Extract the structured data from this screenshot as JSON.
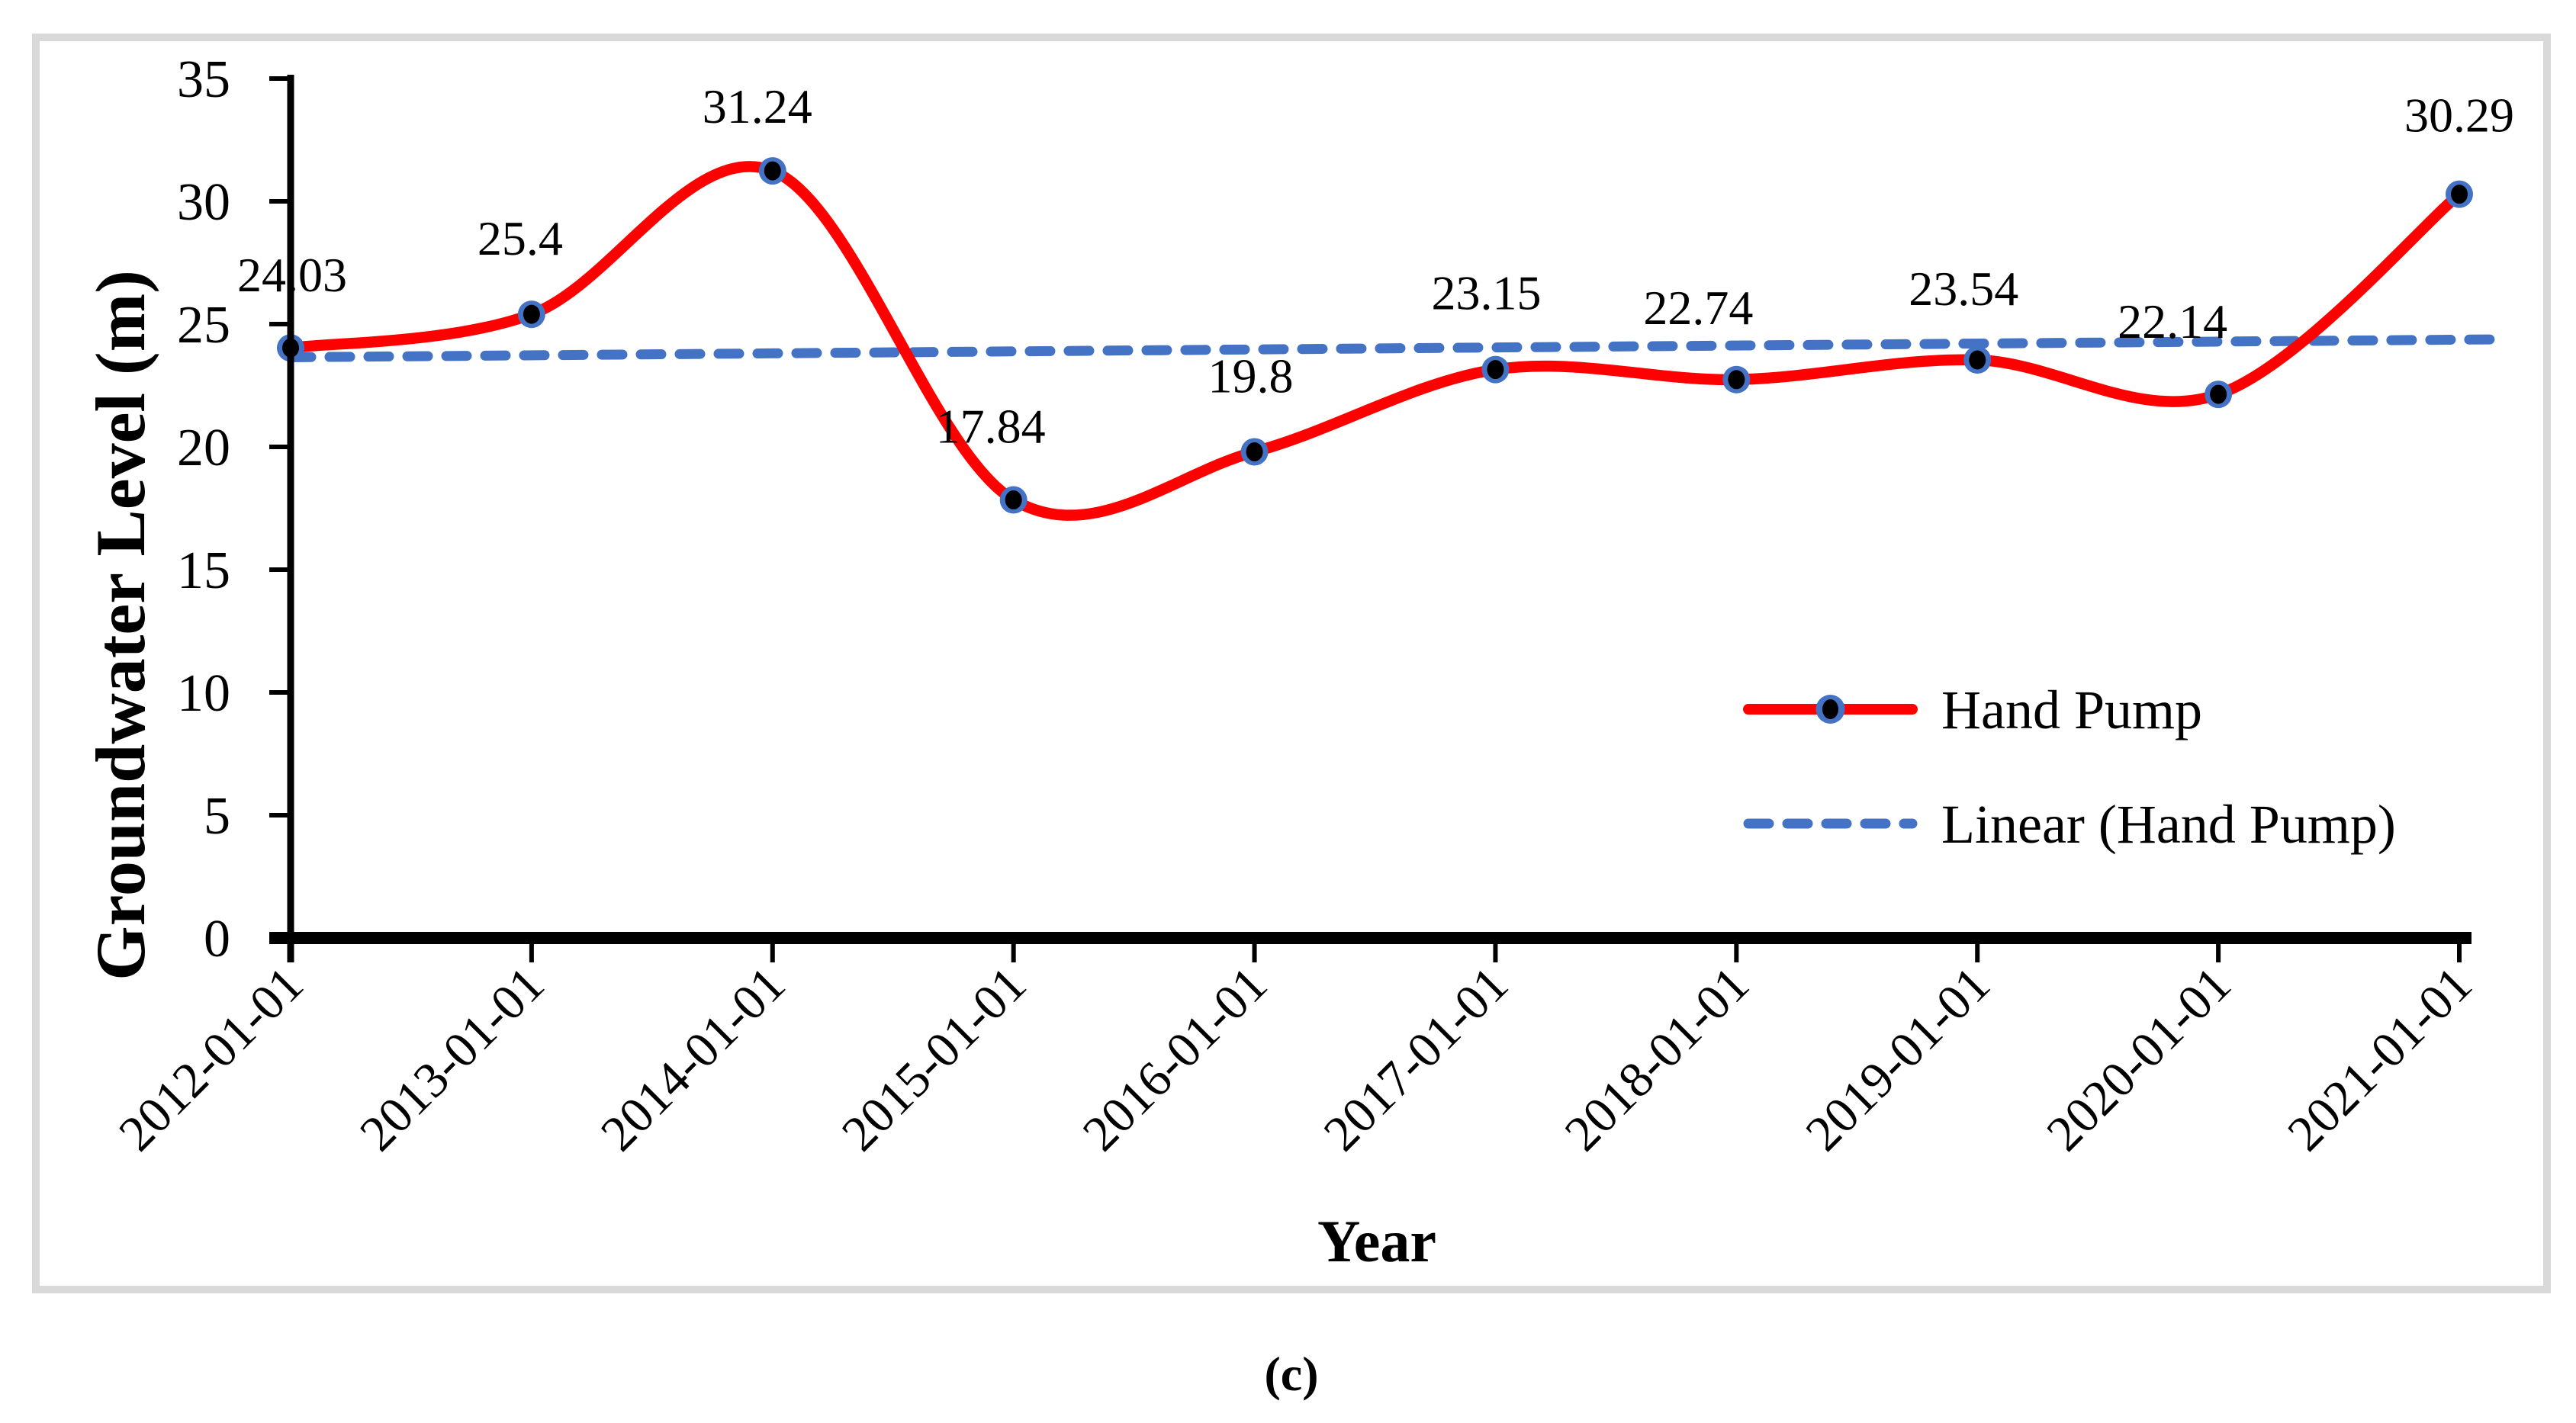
{
  "figure": {
    "caption": "(c)",
    "frame_color": "#d9d9d9",
    "background": "#ffffff"
  },
  "axes": {
    "x": {
      "title": "Year",
      "categories": [
        "2012-01-01",
        "2013-01-01",
        "2014-01-01",
        "2015-01-01",
        "2016-01-01",
        "2017-01-01",
        "2018-01-01",
        "2019-01-01",
        "2020-01-01",
        "2021-01-01"
      ]
    },
    "y": {
      "title": "Groundwater Level (m)",
      "ticks": [
        0,
        5,
        10,
        15,
        20,
        25,
        30,
        35
      ],
      "range": [
        0,
        35
      ]
    }
  },
  "legend": {
    "items": [
      {
        "label": "Hand Pump",
        "symbol": "line-with-marker"
      },
      {
        "label": "Linear (Hand Pump)",
        "symbol": "dashed-line"
      }
    ]
  },
  "chart_data": {
    "type": "line",
    "title": "",
    "xlabel": "Year",
    "ylabel": "Groundwater Level (m)",
    "ylim": [
      0,
      35
    ],
    "grid": false,
    "legend_position": "inside-right",
    "categories": [
      "2012-01-01",
      "2013-01-01",
      "2014-01-01",
      "2015-01-01",
      "2016-01-01",
      "2017-01-01",
      "2018-01-01",
      "2019-01-01",
      "2020-01-01",
      "2021-01-01"
    ],
    "series": [
      {
        "name": "Hand Pump",
        "type": "smooth-line",
        "color": "#ff0000",
        "marker": {
          "fill": "#000000",
          "ring": "#4472c4"
        },
        "values": [
          24.03,
          25.4,
          31.24,
          17.84,
          19.8,
          23.15,
          22.74,
          23.54,
          22.14,
          30.29
        ],
        "data_labels": [
          "24.03",
          "25.4",
          "31.24",
          "17.84",
          "19.8",
          "23.15",
          "22.74",
          "23.54",
          "22.14",
          "30.29"
        ]
      },
      {
        "name": "Linear (Hand Pump)",
        "type": "linear-trendline",
        "color": "#4472c4",
        "dashed": true,
        "endpoint_values": [
          23.65,
          24.38
        ]
      }
    ]
  }
}
